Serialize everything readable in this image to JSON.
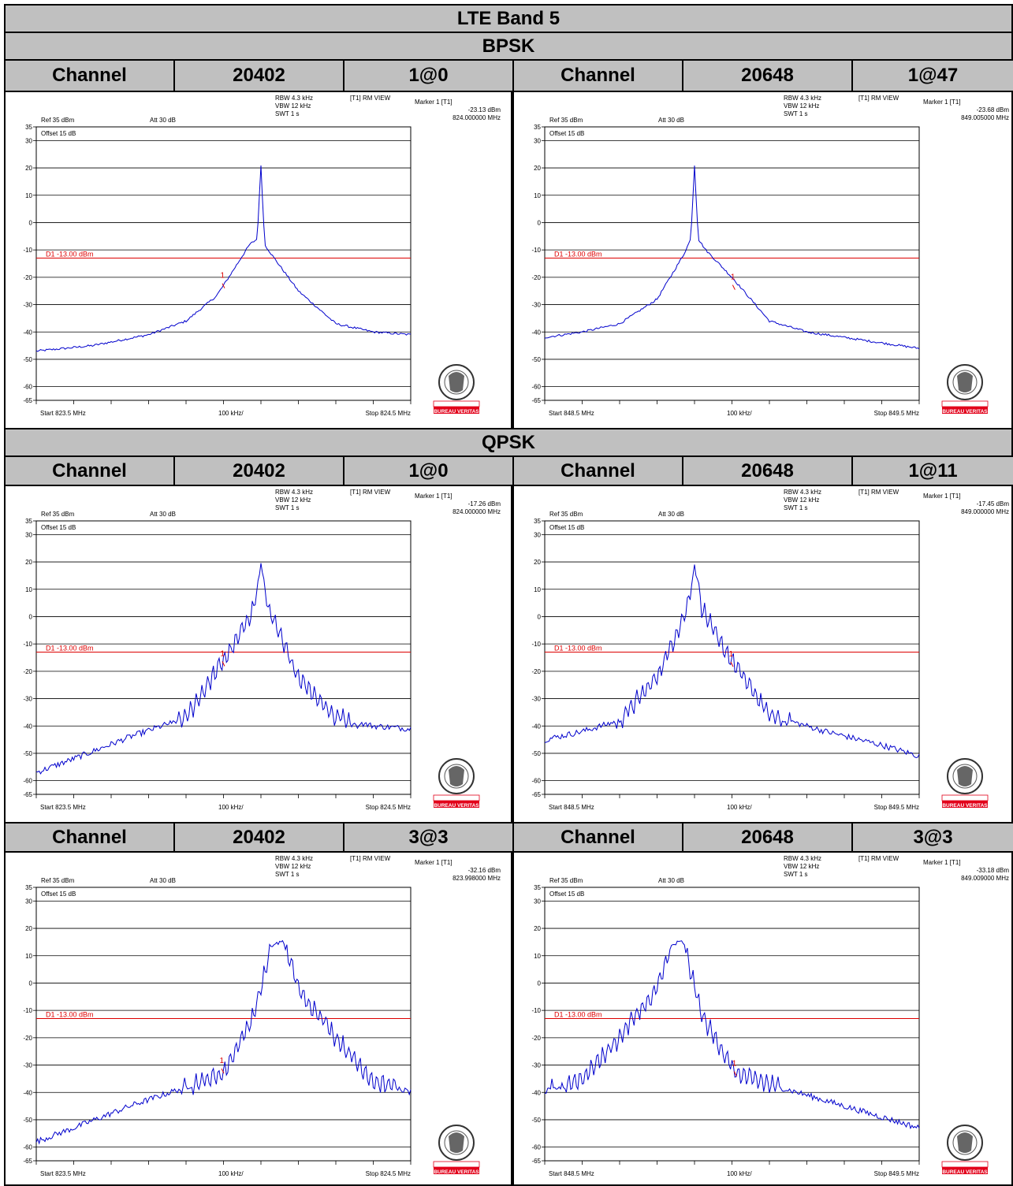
{
  "header": {
    "title": "LTE Band 5",
    "modulations": [
      "BPSK",
      "QPSK"
    ]
  },
  "common_labels": {
    "rbw": "RBW 4.3 kHz",
    "vbw": "VBW 12 kHz",
    "swt": "SWT 1 s",
    "mode": "[T1] RM VIEW",
    "marker_label": "Marker 1 [T1]",
    "ref": "Ref 35 dBm",
    "att": "Att  30 dB",
    "offset": "Offset 15 dB",
    "display_line": "D1 -13.00 dBm",
    "div": "100 kHz/",
    "marker_num": "1",
    "logo_text": "BUREAU VERITAS"
  },
  "colors": {
    "header_bg": "#c0c0c0",
    "trace": "#0000cc",
    "limit_line": "#dd0000",
    "logo_red": "#e2001a"
  },
  "rows": [
    {
      "modulation": "BPSK",
      "entries": [
        {
          "channel_label": "Channel",
          "channel": "20402",
          "rb": "1@0",
          "marker_value": "-23.13 dBm",
          "marker_freq": "824.000000 MHz",
          "start": "Start 823.5 MHz",
          "stop": "Stop 824.5 MHz"
        },
        {
          "channel_label": "Channel",
          "channel": "20648",
          "rb": "1@47",
          "marker_value": "-23.68 dBm",
          "marker_freq": "849.005000 MHz",
          "start": "Start 848.5 MHz",
          "stop": "Stop 849.5 MHz"
        }
      ]
    },
    {
      "modulation": "QPSK",
      "entries": [
        {
          "channel_label": "Channel",
          "channel": "20402",
          "rb": "1@0",
          "marker_value": "-17.26 dBm",
          "marker_freq": "824.000000 MHz",
          "start": "Start 823.5 MHz",
          "stop": "Stop 824.5 MHz"
        },
        {
          "channel_label": "Channel",
          "channel": "20648",
          "rb": "1@11",
          "marker_value": "-17.45 dBm",
          "marker_freq": "849.000000 MHz",
          "start": "Start 848.5 MHz",
          "stop": "Stop 849.5 MHz"
        }
      ]
    },
    {
      "modulation": "QPSK",
      "entries": [
        {
          "channel_label": "Channel",
          "channel": "20402",
          "rb": "3@3",
          "marker_value": "-32.16 dBm",
          "marker_freq": "823.998000 MHz",
          "start": "Start 823.5 MHz",
          "stop": "Stop 824.5 MHz"
        },
        {
          "channel_label": "Channel",
          "channel": "20648",
          "rb": "3@3",
          "marker_value": "-33.18 dBm",
          "marker_freq": "849.009000 MHz",
          "start": "Start 848.5 MHz",
          "stop": "Stop 849.5 MHz"
        }
      ]
    }
  ],
  "chart_data": [
    {
      "type": "line",
      "ylim": [
        -65,
        35
      ],
      "xlim": [
        823.5,
        824.5
      ],
      "yticks": [
        35,
        30,
        20,
        10,
        0,
        -10,
        -20,
        -30,
        -40,
        -50,
        -60,
        -65
      ],
      "limit_line": -13,
      "series": [
        {
          "x": [
            823.5,
            823.65,
            823.8,
            823.9,
            823.98,
            824.0,
            824.07,
            824.09,
            824.1,
            824.11,
            824.13,
            824.2,
            824.3,
            824.4,
            824.5
          ],
          "y": [
            -47,
            -45,
            -41,
            -36,
            -27,
            -23,
            -8,
            -6,
            21,
            -8,
            -12,
            -25,
            -37,
            -40,
            -41
          ]
        }
      ],
      "marker": {
        "x": 824.0,
        "y": -23.13
      }
    },
    {
      "type": "line",
      "ylim": [
        -65,
        35
      ],
      "xlim": [
        848.5,
        849.5
      ],
      "yticks": [
        35,
        30,
        20,
        10,
        0,
        -10,
        -20,
        -30,
        -40,
        -50,
        -60,
        -65
      ],
      "limit_line": -13,
      "series": [
        {
          "x": [
            848.5,
            848.6,
            848.7,
            848.8,
            848.87,
            848.89,
            848.9,
            848.91,
            848.93,
            849.0,
            849.1,
            849.2,
            849.35,
            849.5
          ],
          "y": [
            -42,
            -40,
            -37,
            -28,
            -12,
            -6,
            21,
            -6,
            -10,
            -20,
            -36,
            -40,
            -43,
            -46
          ]
        }
      ],
      "marker": {
        "x": 849.005,
        "y": -23.68
      }
    },
    {
      "type": "line",
      "ylim": [
        -65,
        35
      ],
      "xlim": [
        823.5,
        824.5
      ],
      "yticks": [
        35,
        30,
        20,
        10,
        0,
        -10,
        -20,
        -30,
        -40,
        -50,
        -60,
        -65
      ],
      "limit_line": -13,
      "series": [
        {
          "x": [
            823.5,
            823.6,
            823.75,
            823.9,
            823.98,
            824.03,
            824.08,
            824.1,
            824.12,
            824.16,
            824.2,
            824.3,
            824.4,
            824.5
          ],
          "y": [
            -57,
            -52,
            -44,
            -37,
            -20,
            -10,
            3,
            19,
            3,
            -10,
            -22,
            -37,
            -40,
            -41
          ]
        }
      ],
      "marker": {
        "x": 824.0,
        "y": -17.26
      }
    },
    {
      "type": "line",
      "ylim": [
        -65,
        35
      ],
      "xlim": [
        848.5,
        849.5
      ],
      "yticks": [
        35,
        30,
        20,
        10,
        0,
        -10,
        -20,
        -30,
        -40,
        -50,
        -60,
        -65
      ],
      "limit_line": -13,
      "series": [
        {
          "x": [
            848.5,
            848.6,
            848.7,
            848.8,
            848.84,
            848.88,
            848.9,
            848.92,
            848.97,
            849.02,
            849.1,
            849.25,
            849.4,
            849.5
          ],
          "y": [
            -45,
            -42,
            -38,
            -22,
            -10,
            3,
            19,
            3,
            -10,
            -20,
            -36,
            -42,
            -47,
            -51
          ]
        }
      ],
      "marker": {
        "x": 849.0,
        "y": -17.45
      }
    },
    {
      "type": "line",
      "ylim": [
        -65,
        35
      ],
      "xlim": [
        823.5,
        824.5
      ],
      "yticks": [
        35,
        30,
        20,
        10,
        0,
        -10,
        -20,
        -30,
        -40,
        -50,
        -60,
        -65
      ],
      "limit_line": -13,
      "series": [
        {
          "x": [
            823.5,
            823.6,
            823.75,
            823.9,
            824.0,
            824.08,
            824.13,
            824.16,
            824.21,
            824.26,
            824.3,
            824.4,
            824.5
          ],
          "y": [
            -58,
            -53,
            -45,
            -38,
            -33,
            -12,
            14,
            15,
            -5,
            -12,
            -20,
            -36,
            -40
          ]
        }
      ],
      "marker": {
        "x": 823.998,
        "y": -32.16
      }
    },
    {
      "type": "line",
      "ylim": [
        -65,
        35
      ],
      "xlim": [
        848.5,
        849.5
      ],
      "yticks": [
        35,
        30,
        20,
        10,
        0,
        -10,
        -20,
        -30,
        -40,
        -50,
        -60,
        -65
      ],
      "limit_line": -13,
      "series": [
        {
          "x": [
            848.5,
            848.6,
            848.7,
            848.74,
            848.79,
            848.84,
            848.87,
            848.92,
            849.01,
            849.1,
            849.25,
            849.4,
            849.5
          ],
          "y": [
            -40,
            -35,
            -20,
            -12,
            -5,
            14,
            15,
            -12,
            -33,
            -37,
            -43,
            -49,
            -53
          ]
        }
      ],
      "marker": {
        "x": 849.009,
        "y": -33.18
      }
    }
  ]
}
